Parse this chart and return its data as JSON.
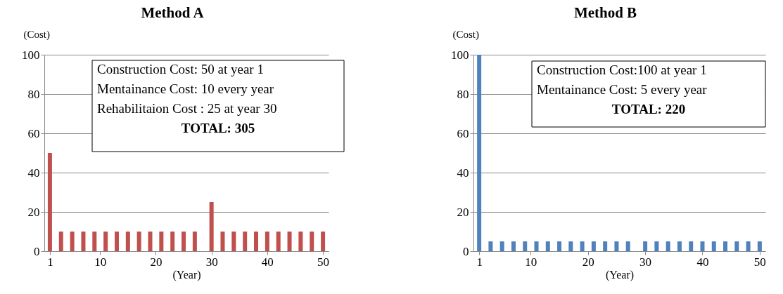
{
  "chart_data": [
    {
      "type": "bar",
      "title": "Method A",
      "xlabel": "(Year)",
      "ylabel": "(Cost)",
      "x": [
        1,
        3,
        5,
        7,
        9,
        11,
        13,
        15,
        17,
        19,
        21,
        23,
        25,
        27,
        30,
        32,
        34,
        36,
        38,
        40,
        42,
        44,
        46,
        48,
        50
      ],
      "series": [
        {
          "color": "#c0504d",
          "values": [
            50,
            10,
            10,
            10,
            10,
            10,
            10,
            10,
            10,
            10,
            10,
            10,
            10,
            10,
            25,
            10,
            10,
            10,
            10,
            10,
            10,
            10,
            10,
            10,
            10
          ]
        }
      ],
      "xlim": [
        0,
        51
      ],
      "xticks": [
        1,
        10,
        20,
        30,
        40,
        50
      ],
      "ylim": [
        0,
        100
      ],
      "yticks": [
        0,
        20,
        40,
        60,
        80,
        100
      ],
      "grid": "y",
      "annotations": [
        "Construction Cost: 50 at year 1",
        "Mentainance  Cost: 10 every  year",
        "Rehabilitaion Cost :  25 at year 30",
        "TOTAL:  305"
      ]
    },
    {
      "type": "bar",
      "title": "Method B",
      "xlabel": "(Year)",
      "ylabel": "(Cost)",
      "x": [
        1,
        3,
        5,
        7,
        9,
        11,
        13,
        15,
        17,
        19,
        21,
        23,
        25,
        27,
        30,
        32,
        34,
        36,
        38,
        40,
        42,
        44,
        46,
        48,
        50
      ],
      "series": [
        {
          "color": "#4f81bd",
          "values": [
            100,
            5,
            5,
            5,
            5,
            5,
            5,
            5,
            5,
            5,
            5,
            5,
            5,
            5,
            5,
            5,
            5,
            5,
            5,
            5,
            5,
            5,
            5,
            5,
            5
          ]
        }
      ],
      "xlim": [
        0,
        51
      ],
      "xticks": [
        1,
        10,
        20,
        30,
        40,
        50
      ],
      "ylim": [
        0,
        100
      ],
      "yticks": [
        0,
        20,
        40,
        60,
        80,
        100
      ],
      "grid": "y",
      "annotations": [
        "Construction Cost:100 at year 1",
        "Mentainance  Cost:   5 every  year",
        "TOTAL:  220"
      ]
    }
  ]
}
